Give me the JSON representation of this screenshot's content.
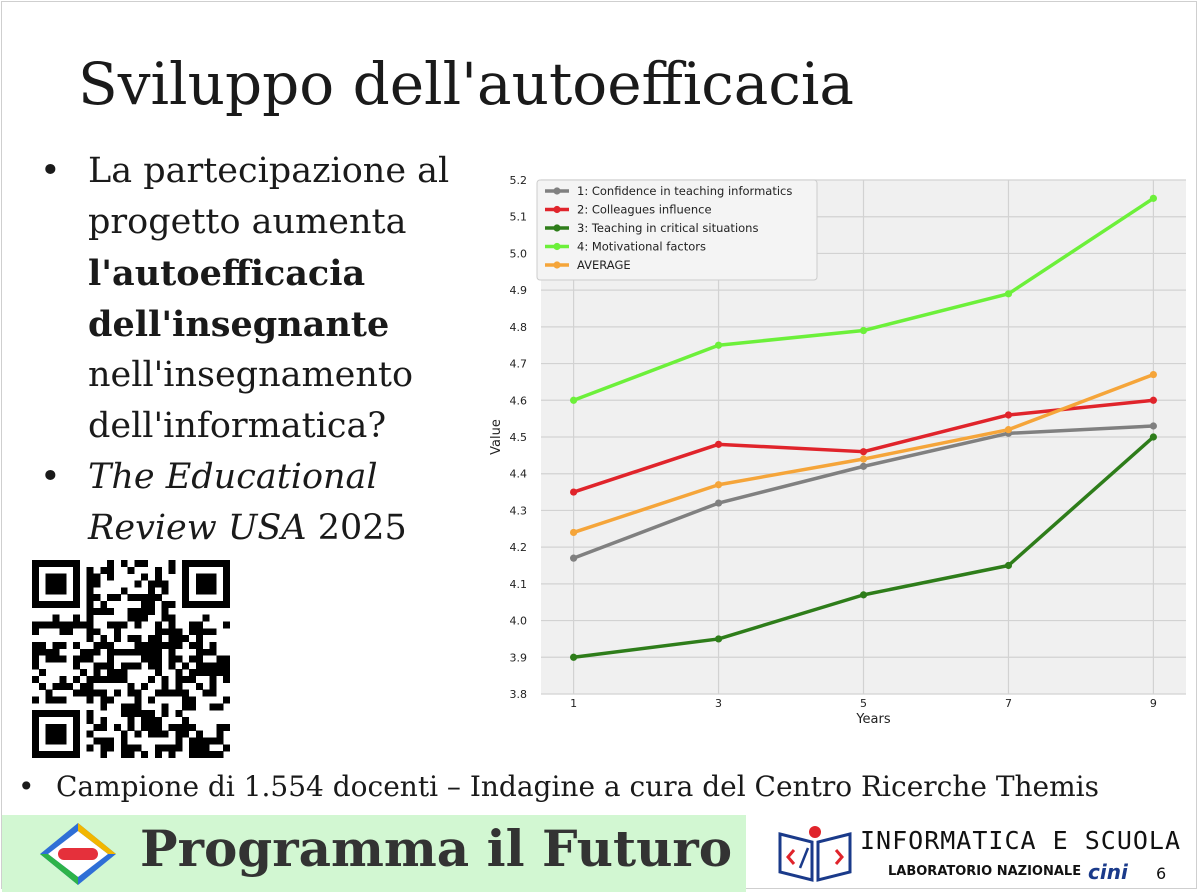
{
  "slide": {
    "title": "Sviluppo dell'autoefficacia",
    "bullet1": {
      "line1": "La partecipazione al",
      "line2": "progetto aumenta",
      "bold1": "l'autoefficacia",
      "bold2": "dell'insegnante",
      "line5": "nell'insegnamento",
      "line6": "dell'informatica?"
    },
    "bullet2": {
      "italic1": "The Educational",
      "italic2": "Review USA",
      "year": "2025"
    },
    "bullet_symbol": "•",
    "bottom_text": "Campione di 1.554 docenti – Indagine a cura del Centro Ricerche Themis",
    "page_number": "6"
  },
  "footer": {
    "brand": "Programma il Futuro",
    "right_title": "INFORMATICA E SCUOLA",
    "right_sub": "LABORATORIO NAZIONALE",
    "right_mark": "cini"
  },
  "chart_data": {
    "type": "line",
    "xlabel": "Years",
    "ylabel": "Value",
    "x": [
      1,
      3,
      5,
      7,
      9
    ],
    "xticks": [
      "1",
      "3",
      "5",
      "7",
      "9"
    ],
    "ylim": [
      3.8,
      5.2
    ],
    "yticks": [
      "3.8",
      "3.9",
      "4.0",
      "4.1",
      "4.2",
      "4.3",
      "4.4",
      "4.5",
      "4.6",
      "4.7",
      "4.8",
      "4.9",
      "5.0",
      "5.1",
      "5.2"
    ],
    "grid": true,
    "legend": "top-left",
    "series": [
      {
        "name": "1: Confidence in teaching informatics",
        "color": "#808080",
        "values": [
          4.17,
          4.32,
          4.42,
          4.51,
          4.53
        ]
      },
      {
        "name": "2: Colleagues influence",
        "color": "#e0242b",
        "values": [
          4.35,
          4.48,
          4.46,
          4.56,
          4.6
        ]
      },
      {
        "name": "3: Teaching in critical situations",
        "color": "#2e7d1a",
        "values": [
          3.9,
          3.95,
          4.07,
          4.15,
          4.5
        ]
      },
      {
        "name": "4: Motivational factors",
        "color": "#6cf03a",
        "values": [
          4.6,
          4.75,
          4.79,
          4.89,
          5.15
        ]
      },
      {
        "name": "AVERAGE",
        "color": "#f5a53a",
        "values": [
          4.24,
          4.37,
          4.44,
          4.52,
          4.67
        ]
      }
    ]
  }
}
